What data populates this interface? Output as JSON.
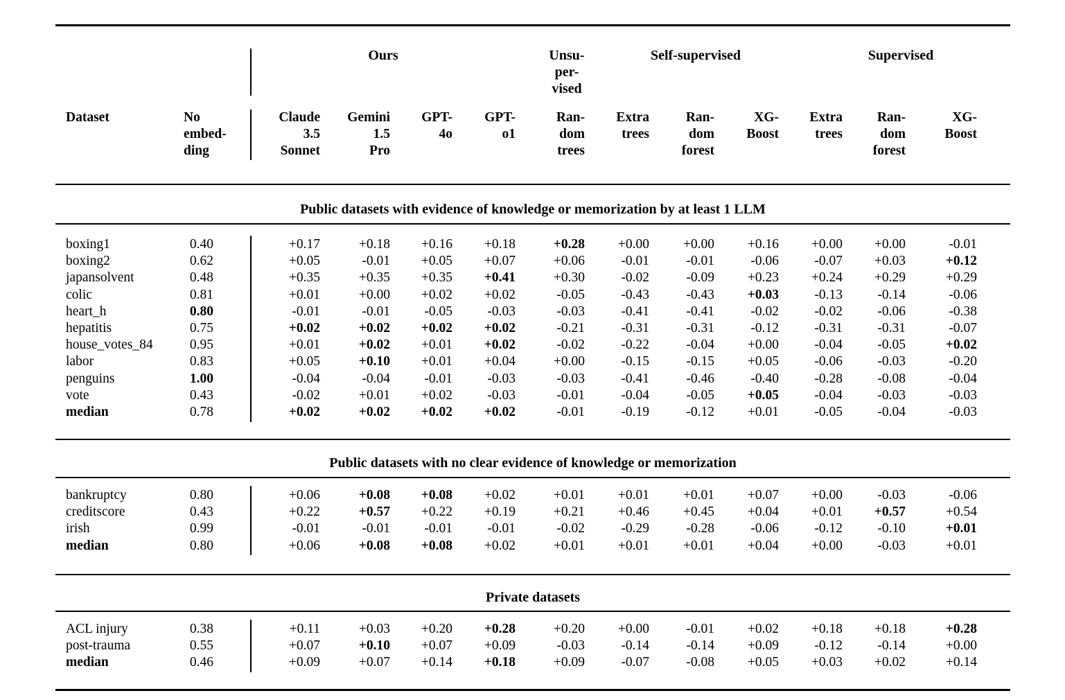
{
  "page": {
    "background": "#ffffff",
    "text_color": "#000000"
  },
  "table": {
    "groups": [
      {
        "label": "Ours"
      },
      {
        "label": "Unsu-\nper-\nvised"
      },
      {
        "label": "Self-supervised"
      },
      {
        "label": "Supervised"
      }
    ],
    "columns": [
      "Dataset",
      "No\nembed-\nding",
      "Claude\n3.5\nSonnet",
      "Gemini\n1.5\nPro",
      "GPT-\n4o",
      "GPT-\no1",
      "Ran-\ndom\ntrees",
      "Extra\ntrees",
      "Ran-\ndom\nforest",
      "XG-\nBoost",
      "Extra\ntrees",
      "Ran-\ndom\nforest",
      "XG-\nBoost"
    ],
    "sections": [
      {
        "title": "Public datasets with evidence of knowledge or memorization by at least 1 LLM",
        "rows": [
          {
            "dataset": "boxing1",
            "bold_dataset": false,
            "values": [
              "0.40",
              "+0.17",
              "+0.18",
              "+0.16",
              "+0.18",
              "+0.28",
              "+0.00",
              "+0.00",
              "+0.16",
              "+0.00",
              "+0.00",
              "-0.01"
            ],
            "bold": [
              5
            ]
          },
          {
            "dataset": "boxing2",
            "bold_dataset": false,
            "values": [
              "0.62",
              "+0.05",
              "-0.01",
              "+0.05",
              "+0.07",
              "+0.06",
              "-0.01",
              "-0.01",
              "-0.06",
              "-0.07",
              "+0.03",
              "+0.12"
            ],
            "bold": [
              11
            ]
          },
          {
            "dataset": "japansolvent",
            "bold_dataset": false,
            "values": [
              "0.48",
              "+0.35",
              "+0.35",
              "+0.35",
              "+0.41",
              "+0.30",
              "-0.02",
              "-0.09",
              "+0.23",
              "+0.24",
              "+0.29",
              "+0.29"
            ],
            "bold": [
              4
            ]
          },
          {
            "dataset": "colic",
            "bold_dataset": false,
            "values": [
              "0.81",
              "+0.01",
              "+0.00",
              "+0.02",
              "+0.02",
              "-0.05",
              "-0.43",
              "-0.43",
              "+0.03",
              "-0.13",
              "-0.14",
              "-0.06"
            ],
            "bold": [
              8
            ]
          },
          {
            "dataset": "heart_h",
            "bold_dataset": false,
            "values": [
              "0.80",
              "-0.01",
              "-0.01",
              "-0.05",
              "-0.03",
              "-0.03",
              "-0.41",
              "-0.41",
              "-0.02",
              "-0.02",
              "-0.06",
              "-0.38"
            ],
            "bold": [
              0
            ]
          },
          {
            "dataset": "hepatitis",
            "bold_dataset": false,
            "values": [
              "0.75",
              "+0.02",
              "+0.02",
              "+0.02",
              "+0.02",
              "-0.21",
              "-0.31",
              "-0.31",
              "-0.12",
              "-0.31",
              "-0.31",
              "-0.07"
            ],
            "bold": [
              1,
              2,
              3,
              4
            ]
          },
          {
            "dataset": "house_votes_84",
            "bold_dataset": false,
            "values": [
              "0.95",
              "+0.01",
              "+0.02",
              "+0.01",
              "+0.02",
              "-0.02",
              "-0.22",
              "-0.04",
              "+0.00",
              "-0.04",
              "-0.05",
              "+0.02"
            ],
            "bold": [
              2,
              4,
              11
            ]
          },
          {
            "dataset": "labor",
            "bold_dataset": false,
            "values": [
              "0.83",
              "+0.05",
              "+0.10",
              "+0.01",
              "+0.04",
              "+0.00",
              "-0.15",
              "-0.15",
              "+0.05",
              "-0.06",
              "-0.03",
              "-0.20"
            ],
            "bold": [
              2
            ]
          },
          {
            "dataset": "penguins",
            "bold_dataset": false,
            "values": [
              "1.00",
              "-0.04",
              "-0.04",
              "-0.01",
              "-0.03",
              "-0.03",
              "-0.41",
              "-0.46",
              "-0.40",
              "-0.28",
              "-0.08",
              "-0.04"
            ],
            "bold": [
              0
            ]
          },
          {
            "dataset": "vote",
            "bold_dataset": false,
            "values": [
              "0.43",
              "-0.02",
              "+0.01",
              "+0.02",
              "-0.03",
              "-0.01",
              "-0.04",
              "-0.05",
              "+0.05",
              "-0.04",
              "-0.03",
              "-0.03"
            ],
            "bold": [
              8
            ]
          },
          {
            "dataset": "median",
            "bold_dataset": true,
            "values": [
              "0.78",
              "+0.02",
              "+0.02",
              "+0.02",
              "+0.02",
              "-0.01",
              "-0.19",
              "-0.12",
              "+0.01",
              "-0.05",
              "-0.04",
              "-0.03"
            ],
            "bold": [
              1,
              2,
              3,
              4
            ]
          }
        ]
      },
      {
        "title": "Public datasets with no clear evidence of knowledge or memorization",
        "rows": [
          {
            "dataset": "bankruptcy",
            "bold_dataset": false,
            "values": [
              "0.80",
              "+0.06",
              "+0.08",
              "+0.08",
              "+0.02",
              "+0.01",
              "+0.01",
              "+0.01",
              "+0.07",
              "+0.00",
              "-0.03",
              "-0.06"
            ],
            "bold": [
              2,
              3
            ]
          },
          {
            "dataset": "creditscore",
            "bold_dataset": false,
            "values": [
              "0.43",
              "+0.22",
              "+0.57",
              "+0.22",
              "+0.19",
              "+0.21",
              "+0.46",
              "+0.45",
              "+0.04",
              "+0.01",
              "+0.57",
              "+0.54"
            ],
            "bold": [
              2,
              10
            ]
          },
          {
            "dataset": "irish",
            "bold_dataset": false,
            "values": [
              "0.99",
              "-0.01",
              "-0.01",
              "-0.01",
              "-0.01",
              "-0.02",
              "-0.29",
              "-0.28",
              "-0.06",
              "-0.12",
              "-0.10",
              "+0.01"
            ],
            "bold": [
              11
            ]
          },
          {
            "dataset": "median",
            "bold_dataset": true,
            "values": [
              "0.80",
              "+0.06",
              "+0.08",
              "+0.08",
              "+0.02",
              "+0.01",
              "+0.01",
              "+0.01",
              "+0.04",
              "+0.00",
              "-0.03",
              "+0.01"
            ],
            "bold": [
              2,
              3
            ]
          }
        ]
      },
      {
        "title": "Private datasets",
        "rows": [
          {
            "dataset": "ACL injury",
            "bold_dataset": false,
            "values": [
              "0.38",
              "+0.11",
              "+0.03",
              "+0.20",
              "+0.28",
              "+0.20",
              "+0.00",
              "-0.01",
              "+0.02",
              "+0.18",
              "+0.18",
              "+0.28"
            ],
            "bold": [
              4,
              11
            ]
          },
          {
            "dataset": "post-trauma",
            "bold_dataset": false,
            "values": [
              "0.55",
              "+0.07",
              "+0.10",
              "+0.07",
              "+0.09",
              "-0.03",
              "-0.14",
              "-0.14",
              "+0.09",
              "-0.12",
              "-0.14",
              "+0.00"
            ],
            "bold": [
              2
            ]
          },
          {
            "dataset": "median",
            "bold_dataset": true,
            "values": [
              "0.46",
              "+0.09",
              "+0.07",
              "+0.14",
              "+0.18",
              "+0.09",
              "-0.07",
              "-0.08",
              "+0.05",
              "+0.03",
              "+0.02",
              "+0.14"
            ],
            "bold": [
              4
            ]
          }
        ]
      }
    ]
  }
}
